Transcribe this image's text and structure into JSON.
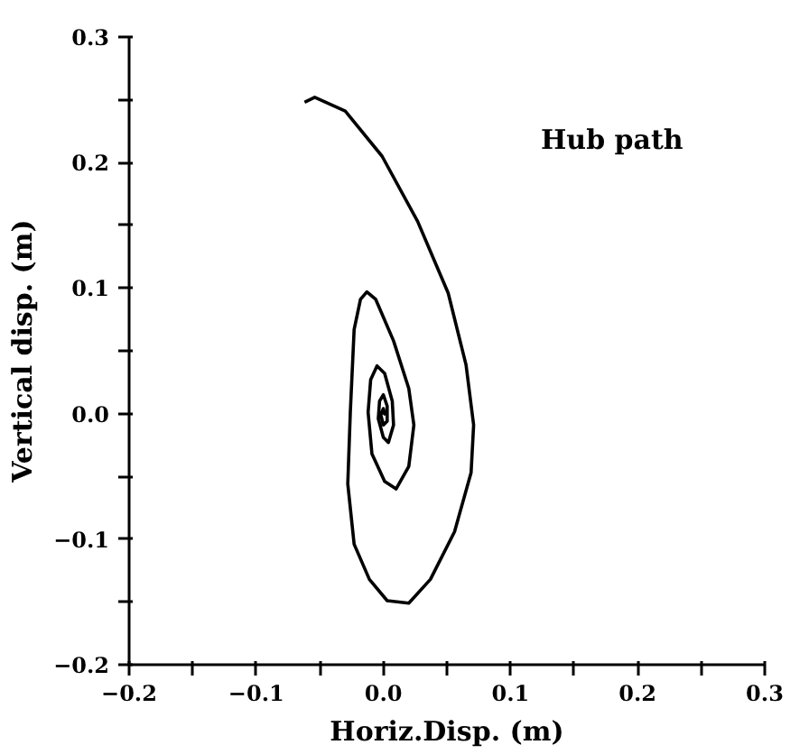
{
  "chart_data": {
    "type": "line",
    "xlabel": "Horiz.Disp. (m)",
    "ylabel": "Vertical disp. (m)",
    "annotations": [
      "Hub path"
    ],
    "xlim": [
      -0.2,
      0.3
    ],
    "ylim": [
      -0.2,
      0.3
    ],
    "xticks": [
      {
        "value": -0.2,
        "label": "−0.2"
      },
      {
        "value": -0.15,
        "label": null
      },
      {
        "value": -0.1,
        "label": "−0.1"
      },
      {
        "value": -0.05,
        "label": null
      },
      {
        "value": 0,
        "label": "0.0"
      },
      {
        "value": 0.05,
        "label": null
      },
      {
        "value": 0.1,
        "label": "0.1"
      },
      {
        "value": 0.15,
        "label": null
      },
      {
        "value": 0.2,
        "label": "0.2"
      },
      {
        "value": 0.25,
        "label": null
      },
      {
        "value": 0.3,
        "label": "0.3"
      }
    ],
    "yticks": [
      {
        "value": -0.2,
        "label": "−0.2"
      },
      {
        "value": -0.15,
        "label": null
      },
      {
        "value": -0.1,
        "label": "−0.1"
      },
      {
        "value": -0.05,
        "label": null
      },
      {
        "value": 0,
        "label": "0.0"
      },
      {
        "value": 0.05,
        "label": null
      },
      {
        "value": 0.1,
        "label": "0.1"
      },
      {
        "value": 0.15,
        "label": null
      },
      {
        "value": 0.2,
        "label": "0.2"
      },
      {
        "value": 0.25,
        "label": null
      },
      {
        "value": 0.3,
        "label": "0.3"
      }
    ],
    "grid": false,
    "marker": "none",
    "line_style": "solid",
    "series": [
      {
        "color": "#000000",
        "x": [
          -0.062,
          -0.054,
          -0.03,
          -0.001,
          0.027,
          0.051,
          0.065,
          0.071,
          0.069,
          0.056,
          0.037,
          0.02,
          0.003,
          -0.011,
          -0.023,
          -0.028,
          -0.026,
          -0.023,
          -0.018,
          -0.013,
          -0.006,
          0.008,
          0.02,
          0.024,
          0.02,
          0.01,
          0.001,
          -0.009,
          -0.012,
          -0.01,
          -0.005,
          0.001,
          0.007,
          0.008,
          0.004,
          0.0,
          -0.004,
          -0.003,
          0.0,
          0.003,
          0.003,
          0.0,
          -0.002,
          0.0,
          0.001,
          0.0
        ],
        "values": [
          0.248,
          0.252,
          0.241,
          0.205,
          0.153,
          0.096,
          0.039,
          -0.009,
          -0.047,
          -0.094,
          -0.132,
          -0.151,
          -0.149,
          -0.132,
          -0.104,
          -0.056,
          0.001,
          0.067,
          0.091,
          0.097,
          0.091,
          0.058,
          0.02,
          -0.009,
          -0.042,
          -0.06,
          -0.054,
          -0.032,
          0.001,
          0.027,
          0.038,
          0.032,
          0.01,
          -0.009,
          -0.023,
          -0.019,
          -0.004,
          0.01,
          0.015,
          0.006,
          -0.006,
          -0.009,
          -0.001,
          0.004,
          0.0,
          -0.001
        ]
      }
    ]
  }
}
